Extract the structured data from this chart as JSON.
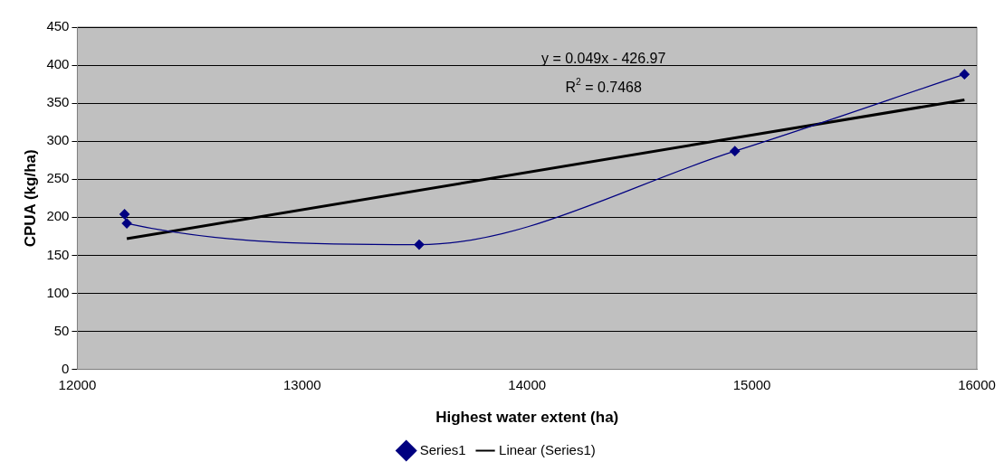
{
  "chart_data": {
    "type": "line",
    "xlabel": "Highest water extent (ha)",
    "ylabel": "CPUA (kg/ha)",
    "series": [
      {
        "name": "Series1",
        "color": "#000080",
        "x": [
          12210,
          12220,
          13520,
          14924,
          15945
        ],
        "values": [
          204,
          192,
          164,
          287,
          388
        ],
        "marker": "diamond"
      },
      {
        "name": "Linear (Series1)",
        "color": "#000000",
        "type": "line",
        "x": [
          12220,
          15945
        ],
        "values": [
          171.8,
          354.3
        ],
        "marker": "none"
      }
    ],
    "xlim": [
      12000,
      16000
    ],
    "xticks": [
      12000,
      13000,
      14000,
      15000,
      16000
    ],
    "ylim": [
      0,
      450
    ],
    "yticks": [
      0,
      50,
      100,
      150,
      200,
      250,
      300,
      350,
      400,
      450
    ],
    "grid": "y",
    "legend": "bottom",
    "annotations": [
      "y = 0.049x - 426.97",
      "R$^{2}$ = 0.7468"
    ]
  }
}
